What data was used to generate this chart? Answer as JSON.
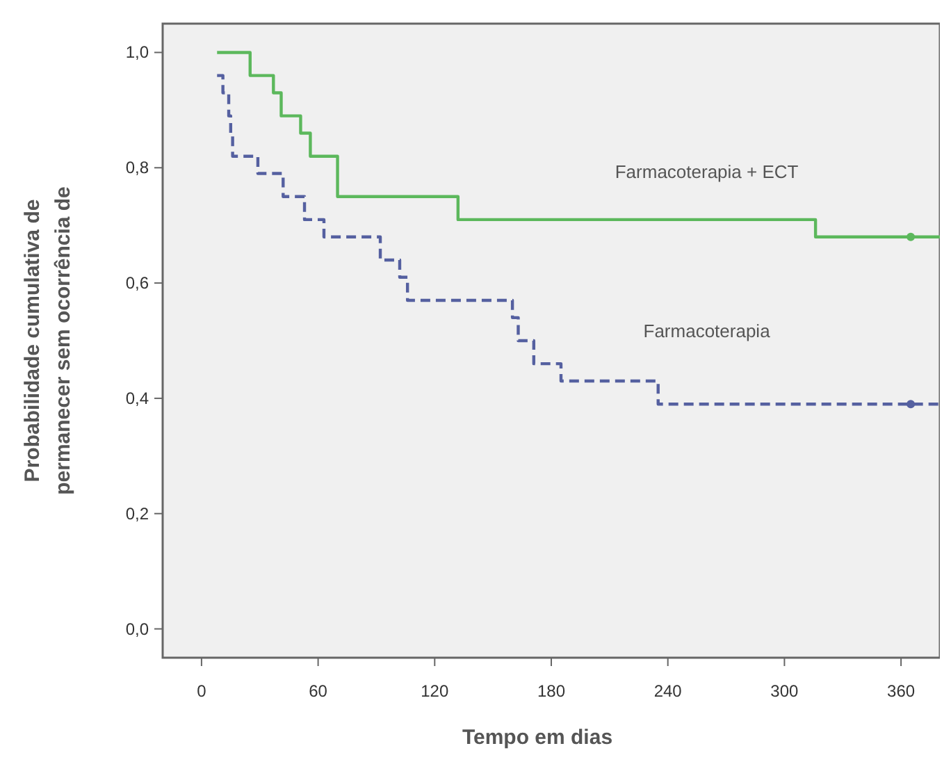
{
  "chart_data": {
    "type": "step",
    "xlabel": "Tempo em dias",
    "ylabel": "Probabilidade cumulativa de\npermanecer sem ocorrência de",
    "xlim": [
      -20,
      380
    ],
    "ylim": [
      -0.05,
      1.05
    ],
    "xticks": [
      0,
      60,
      120,
      180,
      240,
      300,
      360
    ],
    "yticks": [
      {
        "value": 0,
        "label": "0,0"
      },
      {
        "value": 0.2,
        "label": "0,2"
      },
      {
        "value": 0.4,
        "label": "0,4"
      },
      {
        "value": 0.6,
        "label": "0,6"
      },
      {
        "value": 0.8,
        "label": "0,8"
      },
      {
        "value": 1,
        "label": "1,0"
      }
    ],
    "grid": false,
    "series": [
      {
        "name": "Farmacoterapia + ECT",
        "color": "#5cb85c",
        "line_style": "solid",
        "x": [
          8,
          25,
          37,
          41,
          51,
          56,
          70,
          132,
          316,
          380
        ],
        "values": [
          1.0,
          0.96,
          0.93,
          0.89,
          0.86,
          0.82,
          0.75,
          0.71,
          0.68,
          0.68
        ]
      },
      {
        "name": "Farmacoterapia",
        "color": "#5560a0",
        "line_style": "dashed",
        "x": [
          8,
          11,
          14,
          15,
          16,
          29,
          42,
          53,
          63,
          92,
          102,
          106,
          160,
          163,
          171,
          185,
          235,
          380
        ],
        "values": [
          0.96,
          0.93,
          0.89,
          0.86,
          0.82,
          0.79,
          0.75,
          0.71,
          0.68,
          0.64,
          0.61,
          0.57,
          0.54,
          0.5,
          0.46,
          0.43,
          0.39,
          0.39
        ]
      },
      {
        "type": "scatter",
        "color": "#5cb85c",
        "marker": "circle",
        "x": [
          365
        ],
        "values": [
          0.68
        ]
      },
      {
        "type": "scatter",
        "color": "#5560a0",
        "marker": "circle",
        "x": [
          365
        ],
        "values": [
          0.39
        ]
      }
    ]
  }
}
